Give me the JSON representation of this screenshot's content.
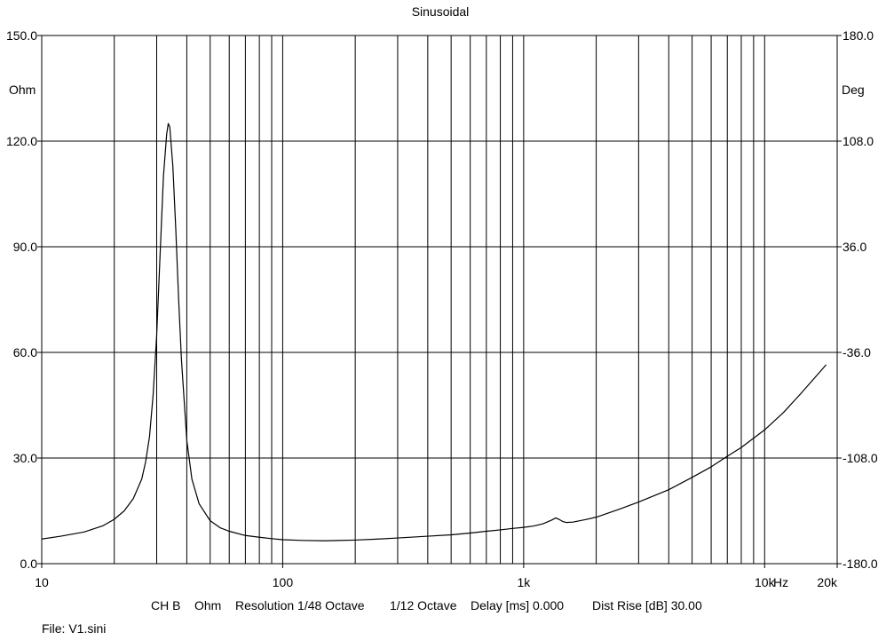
{
  "chart_data": {
    "type": "line",
    "title": "Sinusoidal",
    "xscale": "log",
    "xlim": [
      10,
      20000
    ],
    "ylim": [
      0,
      150
    ],
    "y2lim": [
      -180,
      180
    ],
    "grid": true,
    "left_unit": "Ohm",
    "right_unit": "Deg",
    "x_unit": "Hz",
    "x_ticks": [
      {
        "value": 10,
        "label": "10"
      },
      {
        "value": 100,
        "label": "100"
      },
      {
        "value": 1000,
        "label": "1k"
      },
      {
        "value": 10000,
        "label": "10k"
      },
      {
        "value": 20000,
        "label": "20k"
      }
    ],
    "y_ticks": [
      {
        "value": 0,
        "label": "0.0"
      },
      {
        "value": 30,
        "label": "30.0"
      },
      {
        "value": 60,
        "label": "60.0"
      },
      {
        "value": 90,
        "label": "90.0"
      },
      {
        "value": 120,
        "label": "120.0"
      },
      {
        "value": 150,
        "label": "150.0"
      }
    ],
    "y2_ticks": [
      {
        "value": -180,
        "label": "-180.0"
      },
      {
        "value": -108,
        "label": "-108.0"
      },
      {
        "value": -36,
        "label": "-36.0"
      },
      {
        "value": 36,
        "label": "36.0"
      },
      {
        "value": 108,
        "label": "108.0"
      },
      {
        "value": 180,
        "label": "180.0"
      }
    ],
    "series": [
      {
        "x": [
          10,
          12,
          15,
          18,
          20,
          22,
          24,
          26,
          27,
          28,
          29,
          30,
          31,
          32,
          33,
          33.5,
          34,
          35,
          36,
          37,
          38,
          40,
          42,
          45,
          50,
          55,
          60,
          70,
          80,
          90,
          100,
          120,
          150,
          200,
          250,
          300,
          400,
          500,
          600,
          700,
          800,
          900,
          1000,
          1100,
          1200,
          1300,
          1360,
          1400,
          1450,
          1500,
          1600,
          1800,
          2000,
          2500,
          3000,
          4000,
          5000,
          6000,
          7000,
          8000,
          10000,
          12000,
          14000,
          16000,
          18000
        ],
        "values": [
          7.0,
          7.8,
          9.0,
          10.8,
          12.6,
          15.0,
          18.5,
          24.0,
          29.0,
          36.0,
          48.0,
          65.0,
          88.0,
          110.0,
          122.0,
          125.0,
          124.0,
          113.0,
          95.0,
          75.0,
          58.0,
          35.0,
          24.0,
          17.0,
          12.2,
          10.2,
          9.2,
          8.0,
          7.5,
          7.1,
          6.8,
          6.6,
          6.5,
          6.7,
          7.0,
          7.3,
          7.8,
          8.2,
          8.7,
          9.2,
          9.6,
          10.0,
          10.3,
          10.7,
          11.3,
          12.3,
          13.0,
          12.6,
          12.0,
          11.7,
          11.8,
          12.5,
          13.2,
          15.5,
          17.5,
          21.0,
          24.5,
          27.5,
          30.5,
          33.0,
          38.0,
          43.0,
          48.0,
          52.5,
          56.5
        ]
      }
    ],
    "footer": {
      "channel": "CH B",
      "unit": "Ohm",
      "resolution": "Resolution 1/48 Octave",
      "smoothing": "1/12 Octave",
      "delay": "Delay [ms] 0.000",
      "dist_rise": "Dist Rise [dB] 30.00"
    },
    "file_label": "File: V1.sini"
  }
}
